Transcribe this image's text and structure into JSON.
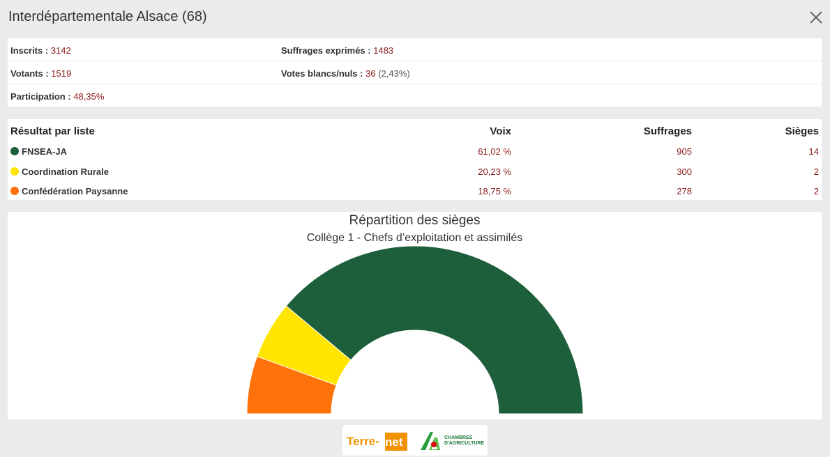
{
  "header": {
    "title": "Interdépartementale Alsace (68)"
  },
  "stats": {
    "inscrits_label": "Inscrits :",
    "inscrits_value": "3142",
    "suffrages_label": "Suffrages exprimés :",
    "suffrages_value": "1483",
    "votants_label": "Votants :",
    "votants_value": "1519",
    "blancs_label": "Votes blancs/nuls :",
    "blancs_value": "36",
    "blancs_pct": "(2,43%)",
    "participation_label": "Participation :",
    "participation_value": "48,35%"
  },
  "results": {
    "headers": {
      "liste": "Résultat par liste",
      "voix": "Voix",
      "suffrages": "Suffrages",
      "sieges": "Sièges"
    },
    "rows": [
      {
        "name": "FNSEA-JA",
        "voix": "61,02 %",
        "suffrages": "905",
        "sieges": "14",
        "color": "#1d5e3b"
      },
      {
        "name": "Coordination Rurale",
        "voix": "20,23 %",
        "suffrages": "300",
        "sieges": "2",
        "color": "#ffe500"
      },
      {
        "name": "Confédération Paysanne",
        "voix": "18,75 %",
        "suffrages": "278",
        "sieges": "2",
        "color": "#ff7109"
      }
    ]
  },
  "chart_data": {
    "type": "pie",
    "subtype": "semicircle-donut",
    "title": "Répartition des sièges",
    "subtitle": "Collège 1 - Chefs d’exploitation et assimilés",
    "categories": [
      "Confédération Paysanne",
      "Coordination Rurale",
      "FNSEA-JA"
    ],
    "values": [
      2,
      2,
      14
    ],
    "colors": [
      "#ff7109",
      "#ffe500",
      "#1d5e3b"
    ]
  },
  "logos": {
    "terrenet_left": "Terre-",
    "terrenet_right": "net",
    "chambres_line1": "CHAMBRES",
    "chambres_line2": "D'AGRICULTURE"
  },
  "icons": {
    "close": "close-icon"
  }
}
